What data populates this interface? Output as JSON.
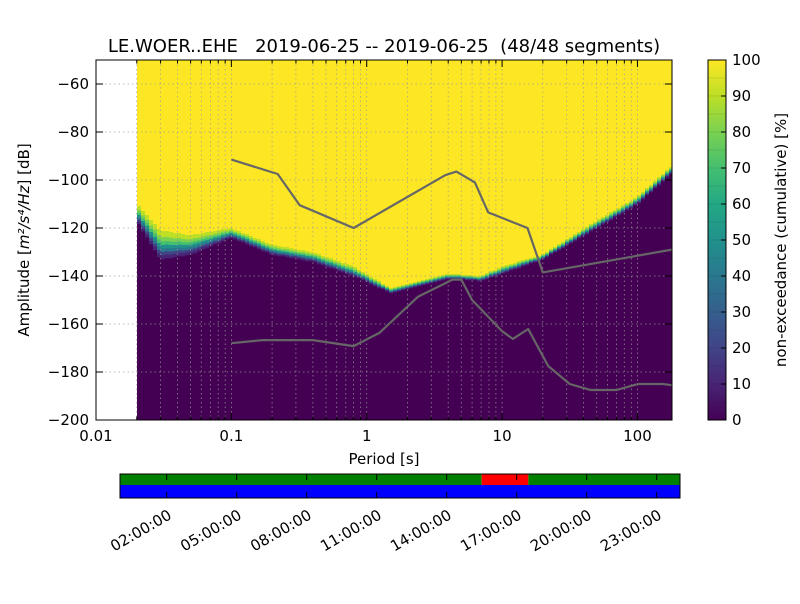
{
  "chart_data": [
    {
      "type": "heatmap",
      "title": "LE.WOER..EHE   2019-06-25 -- 2019-06-25  (48/48 segments)",
      "xlabel": "Period [s]",
      "ylabel_prefix": "Amplitude [",
      "ylabel_units": "m²/s⁴/Hz",
      "ylabel_suffix": "] [dB]",
      "xscale": "log",
      "xlim": [
        0.01,
        180
      ],
      "ylim": [
        -200,
        -50
      ],
      "x_ticks": [
        {
          "value": 0.01,
          "label": "0.01"
        },
        {
          "value": 0.1,
          "label": "0.1"
        },
        {
          "value": 1,
          "label": "1"
        },
        {
          "value": 10,
          "label": "10"
        },
        {
          "value": 100,
          "label": "100"
        }
      ],
      "y_ticks": [
        {
          "value": -60,
          "label": "−60"
        },
        {
          "value": -80,
          "label": "−80"
        },
        {
          "value": -100,
          "label": "−100"
        },
        {
          "value": -120,
          "label": "−120"
        },
        {
          "value": -140,
          "label": "−140"
        },
        {
          "value": -160,
          "label": "−160"
        },
        {
          "value": -180,
          "label": "−180"
        },
        {
          "value": -200,
          "label": "−200"
        }
      ],
      "grid": true,
      "data_period_start": 0.02,
      "psd_boundary": [
        {
          "period": 0.02,
          "top": -110,
          "bottom": -117
        },
        {
          "period": 0.03,
          "top": -121,
          "bottom": -133
        },
        {
          "period": 0.05,
          "top": -123,
          "bottom": -131
        },
        {
          "period": 0.1,
          "top": -120,
          "bottom": -124
        },
        {
          "period": 0.2,
          "top": -127,
          "bottom": -131
        },
        {
          "period": 0.4,
          "top": -130,
          "bottom": -134
        },
        {
          "period": 0.8,
          "top": -136,
          "bottom": -140
        },
        {
          "period": 1.5,
          "top": -145,
          "bottom": -147
        },
        {
          "period": 2.5,
          "top": -142,
          "bottom": -144
        },
        {
          "period": 4,
          "top": -139,
          "bottom": -141
        },
        {
          "period": 7,
          "top": -140,
          "bottom": -142
        },
        {
          "period": 10,
          "top": -136,
          "bottom": -139
        },
        {
          "period": 20,
          "top": -131,
          "bottom": -133
        },
        {
          "period": 50,
          "top": -117,
          "bottom": -120
        },
        {
          "period": 100,
          "top": -107,
          "bottom": -110
        },
        {
          "period": 180,
          "top": -94,
          "bottom": -97
        }
      ],
      "noise_models": [
        {
          "name": "high-noise",
          "points": [
            [
              0.1,
              -91.5
            ],
            [
              0.22,
              -97.5
            ],
            [
              0.32,
              -110.5
            ],
            [
              0.8,
              -120
            ],
            [
              3.8,
              -98
            ],
            [
              4.6,
              -96.5
            ],
            [
              6.3,
              -101
            ],
            [
              7.9,
              -113.5
            ],
            [
              15.4,
              -120
            ],
            [
              20,
              -138.5
            ],
            [
              180,
              -129
            ]
          ]
        },
        {
          "name": "low-noise",
          "points": [
            [
              0.1,
              -168
            ],
            [
              0.17,
              -166.7
            ],
            [
              0.4,
              -166.7
            ],
            [
              0.8,
              -169.2
            ],
            [
              1.24,
              -163.7
            ],
            [
              2.4,
              -148.6
            ],
            [
              4.3,
              -141.5
            ],
            [
              5,
              -141.5
            ],
            [
              6,
              -150
            ],
            [
              10,
              -163
            ],
            [
              12,
              -166.2
            ],
            [
              15.6,
              -162.1
            ],
            [
              21.9,
              -177.5
            ],
            [
              31.6,
              -185
            ],
            [
              45,
              -187.5
            ],
            [
              70,
              -187.5
            ],
            [
              101,
              -185
            ],
            [
              154,
              -185
            ],
            [
              180,
              -185.5
            ]
          ]
        }
      ],
      "colorbar": {
        "label": "non-exceedance (cumulative) [%]",
        "ticks": [
          "0",
          "10",
          "20",
          "30",
          "40",
          "50",
          "60",
          "70",
          "80",
          "90",
          "100"
        ],
        "colormap": "viridis",
        "levels": 20
      },
      "colors": {
        "low": "#440154",
        "band": "#3a1858",
        "high": "#fde725",
        "nodata": "#ffffff",
        "noise_model_line": "#666666"
      }
    },
    {
      "type": "timeline",
      "times": [
        "02:00:00",
        "05:00:00",
        "08:00:00",
        "11:00:00",
        "14:00:00",
        "17:00:00",
        "20:00:00",
        "23:00:00"
      ],
      "top_row": [
        {
          "from": "00:00",
          "to": "15:30",
          "status": "ok",
          "color": "#008000"
        },
        {
          "from": "15:30",
          "to": "17:30",
          "status": "gap",
          "color": "#ff0000"
        },
        {
          "from": "17:30",
          "to": "24:00",
          "status": "ok",
          "color": "#008000"
        }
      ],
      "bottom_row": [
        {
          "from": "00:00",
          "to": "24:00",
          "status": "used",
          "color": "#0000ff"
        }
      ]
    }
  ]
}
